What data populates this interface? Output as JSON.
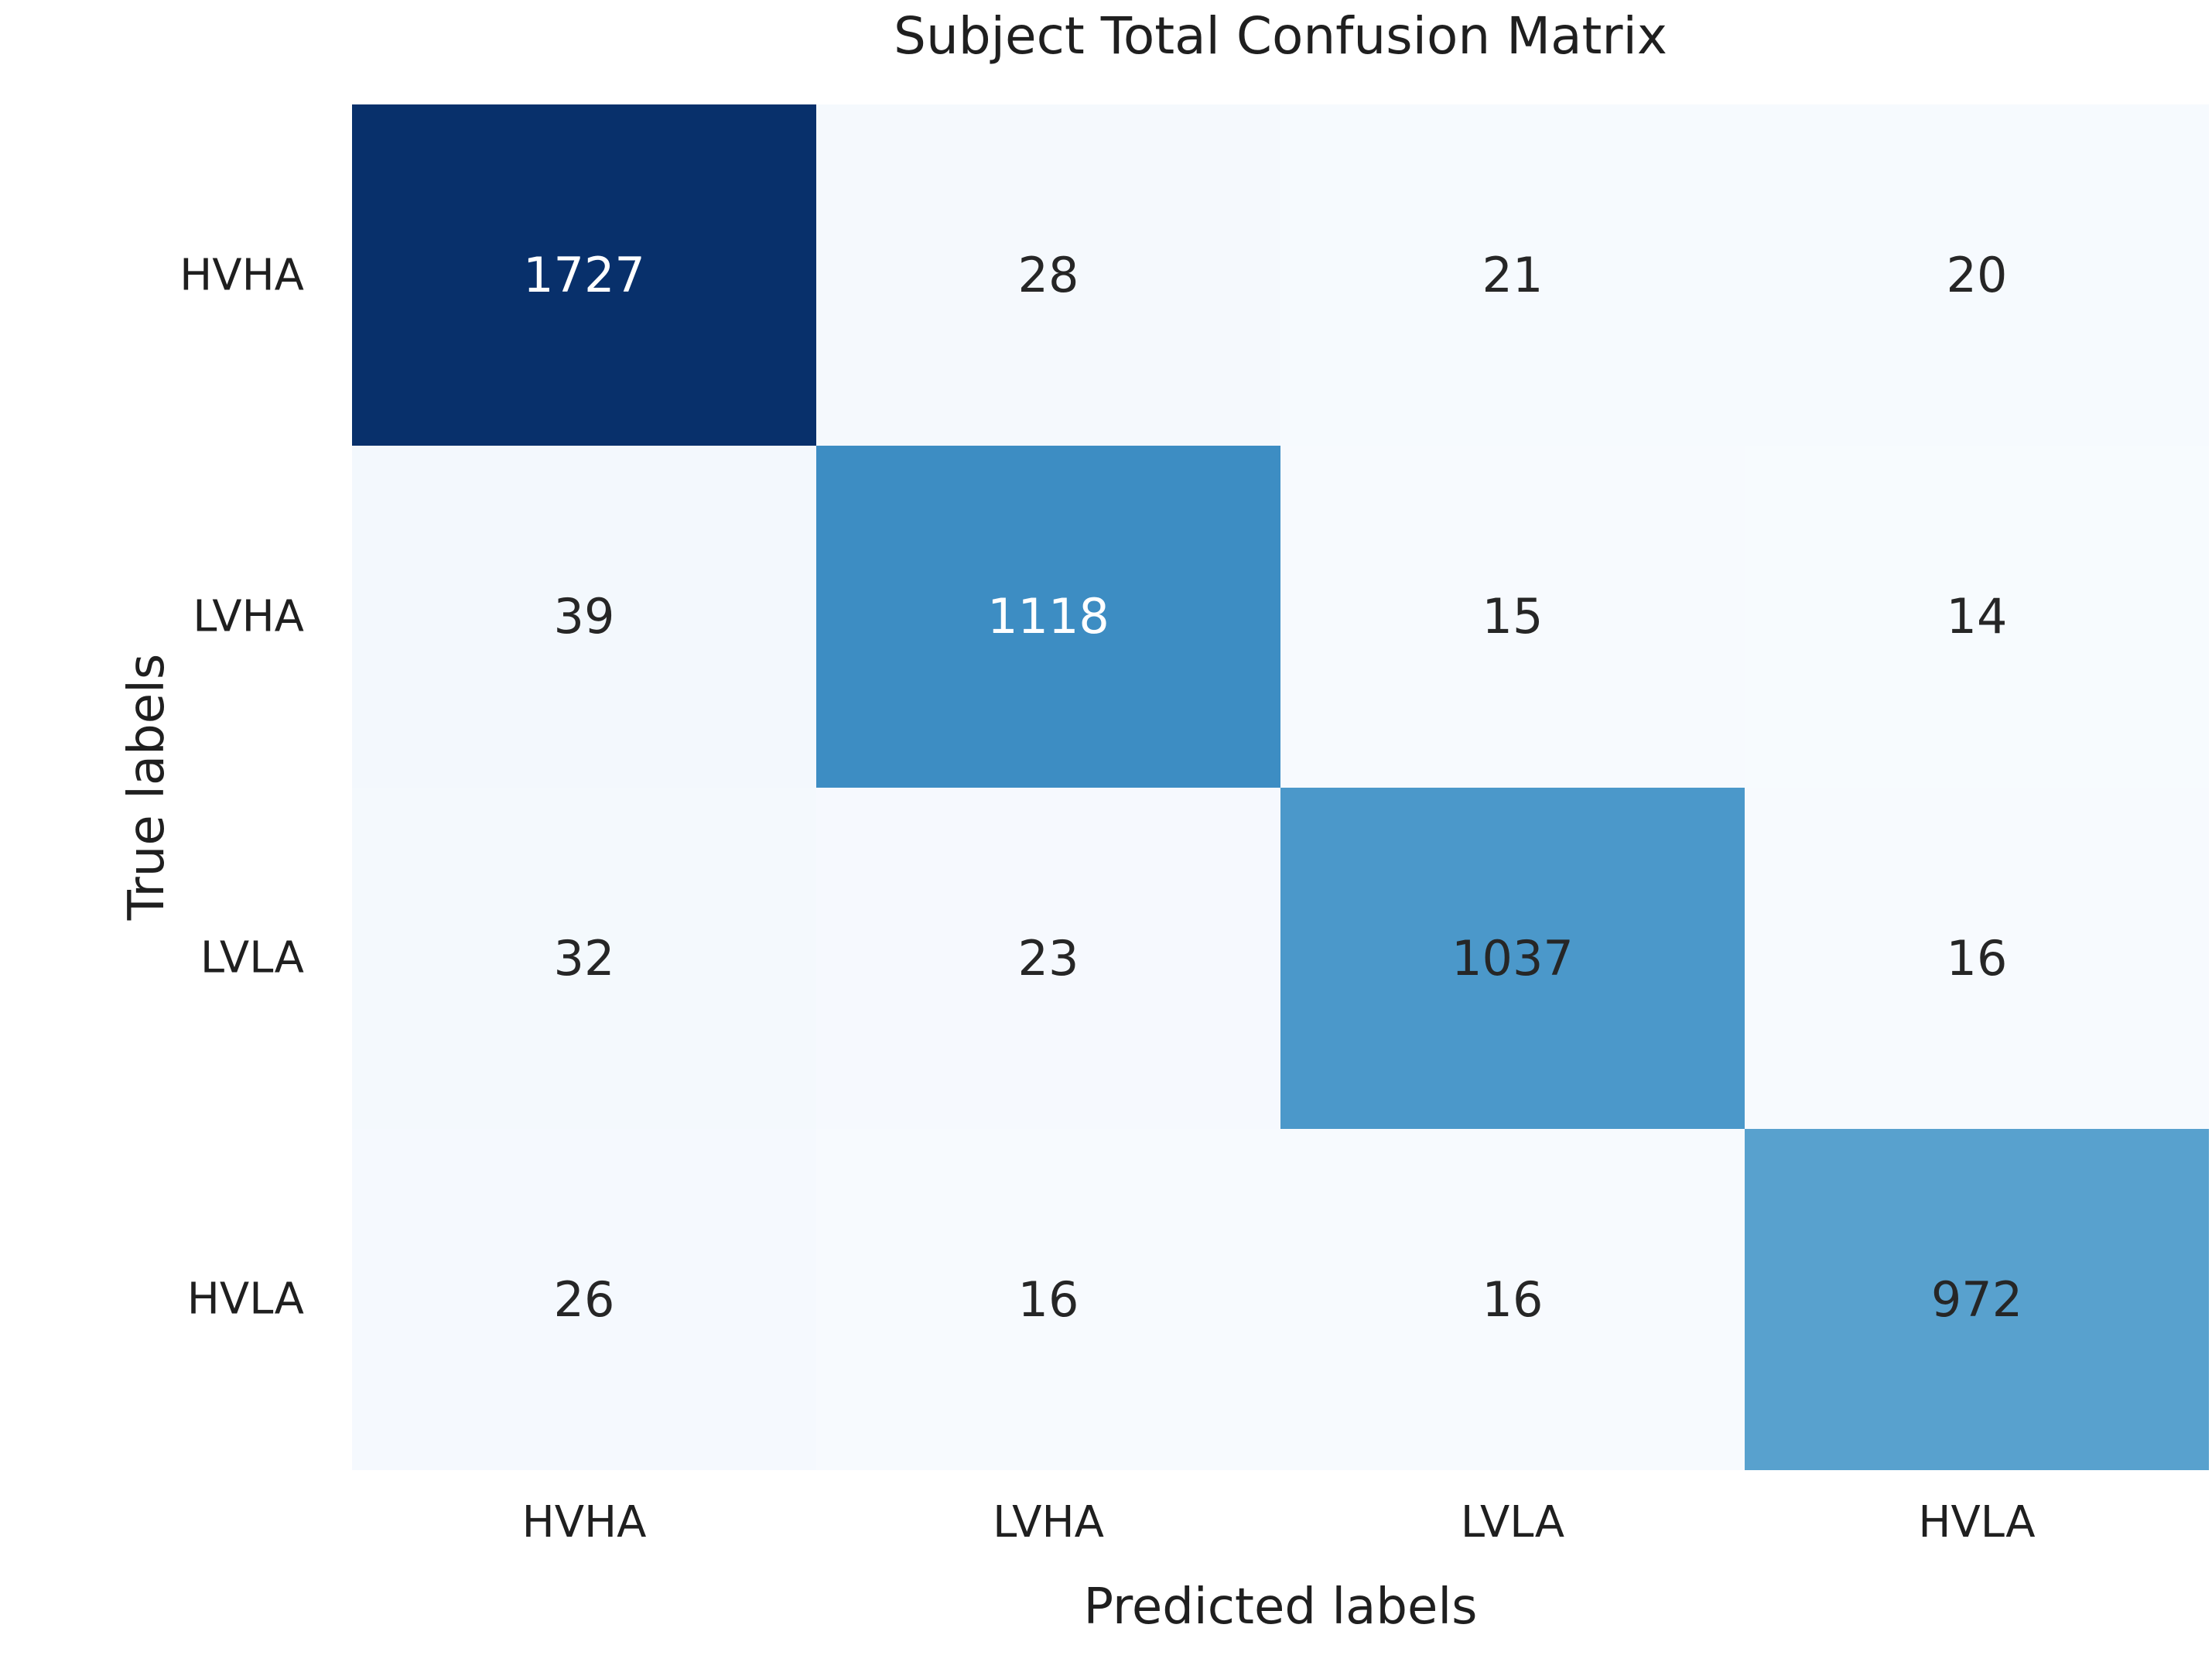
{
  "title": "Subject Total Confusion Matrix",
  "chart_data": {
    "type": "heatmap",
    "title": "Subject Total Confusion Matrix",
    "xlabel": "Predicted labels",
    "ylabel": "True labels",
    "x_categories": [
      "HVHA",
      "LVHA",
      "LVLA",
      "HVLA"
    ],
    "y_categories": [
      "HVHA",
      "LVHA",
      "LVLA",
      "HVLA"
    ],
    "matrix": [
      [
        1727,
        28,
        21,
        20
      ],
      [
        39,
        1118,
        15,
        14
      ],
      [
        32,
        23,
        1037,
        16
      ],
      [
        26,
        16,
        16,
        972
      ]
    ],
    "colormap": "Blues",
    "value_range": [
      14,
      1727
    ],
    "legend": "none",
    "grid": "off",
    "cell_colors": [
      [
        "#08306b",
        "#f5f9fd",
        "#f6fafe",
        "#f6fafe"
      ],
      [
        "#f3f8fd",
        "#3d8dc3",
        "#f7fafe",
        "#f7fbfe"
      ],
      [
        "#f4f9fd",
        "#f6f9fe",
        "#4b98ca",
        "#f7fafe"
      ],
      [
        "#f5f9fe",
        "#f7fafe",
        "#f7fafe",
        "#58a1ce"
      ]
    ]
  },
  "colors": {
    "background": "#ffffff",
    "text": "#1f1f1f",
    "annotation_on_dark": "#ffffff",
    "annotation_on_light": "#262626",
    "diagonal_darkest": "#08306b",
    "diagonal_mid": "#3d8dc3",
    "off_diagonal_light": "#f5f9fd"
  }
}
